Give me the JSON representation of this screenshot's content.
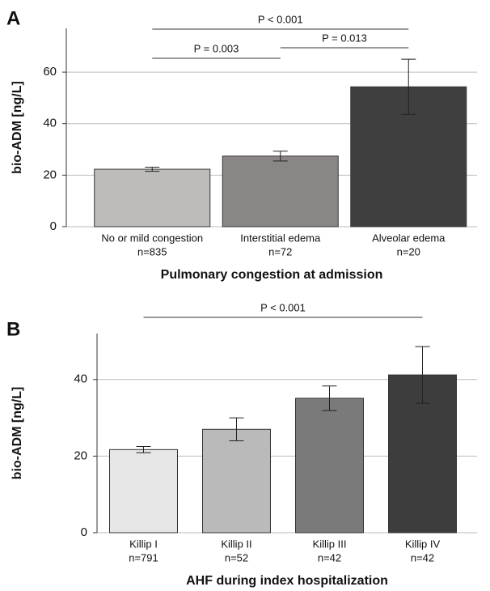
{
  "chart_data": [
    {
      "type": "bar",
      "panel_label": "A",
      "ylabel": "bio-ADM [ng/L]",
      "xlabel": "Pulmonary congestion at admission",
      "categories": [
        "No or mild congestion",
        "Interstitial edema",
        "Alveolar edema"
      ],
      "sample_sizes": [
        "n=835",
        "n=72",
        "n=20"
      ],
      "values": [
        22.3,
        27.4,
        54.3
      ],
      "errors": [
        0.8,
        1.9,
        10.7
      ],
      "colors": [
        "#bdbcba",
        "#8a8685",
        "#3f3f3f"
      ],
      "ylim": [
        0,
        77
      ],
      "yticks": [
        0,
        20,
        40,
        60
      ],
      "grid": true,
      "annotations": [
        {
          "label": "P < 0.001",
          "from": 0,
          "to": 2
        },
        {
          "label": "P = 0.003",
          "from": 0,
          "to": 1
        },
        {
          "label": "P = 0.013",
          "from": 1,
          "to": 2
        }
      ]
    },
    {
      "type": "bar",
      "panel_label": "B",
      "ylabel": "bio-ADM [ng/L]",
      "xlabel": "AHF during index hospitalization",
      "categories": [
        "Killip I",
        "Killip II",
        "Killip III",
        "Killip IV"
      ],
      "sample_sizes": [
        "n=791",
        "n=52",
        "n=42",
        "n=42"
      ],
      "values": [
        21.7,
        27.0,
        35.1,
        41.2
      ],
      "errors": [
        0.8,
        3.0,
        3.2,
        7.4
      ],
      "colors": [
        "#e6e6e6",
        "#b9bab9",
        "#7a7a7a",
        "#3d3d3d"
      ],
      "ylim": [
        0,
        52
      ],
      "yticks": [
        0,
        20,
        40
      ],
      "grid": true,
      "annotations": [
        {
          "label": "P < 0.001",
          "from": 0,
          "to": 3
        }
      ]
    }
  ]
}
